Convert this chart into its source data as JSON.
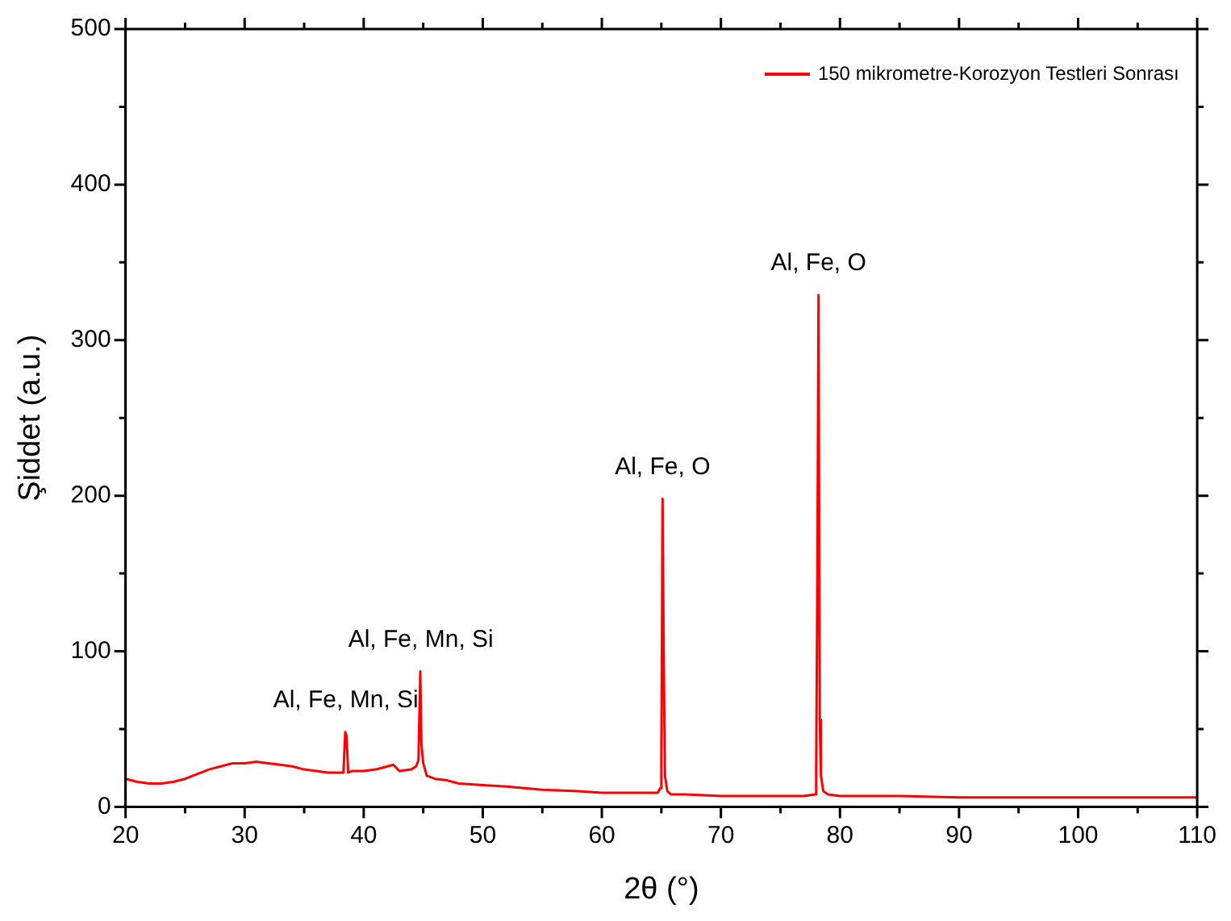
{
  "chart_data": {
    "type": "line",
    "xlabel": "2θ (°)",
    "ylabel": "Şiddet (a.u.)",
    "xlim": [
      20,
      110
    ],
    "ylim": [
      0,
      500
    ],
    "xticks": [
      20,
      {
        "value": 25,
        "label": null
      },
      30,
      {
        "value": 35,
        "label": null
      },
      40,
      {
        "value": 45,
        "label": null
      },
      50,
      {
        "value": 55,
        "label": null
      },
      60,
      {
        "value": 65,
        "label": null
      },
      70,
      {
        "value": 75,
        "label": null
      },
      80,
      {
        "value": 85,
        "label": null
      },
      90,
      {
        "value": 95,
        "label": null
      },
      100,
      {
        "value": 105,
        "label": null
      },
      110
    ],
    "yticks": [
      0,
      {
        "value": 50,
        "label": null
      },
      100,
      {
        "value": 150,
        "label": null
      },
      200,
      {
        "value": 250,
        "label": null
      },
      300,
      {
        "value": 350,
        "label": null
      },
      400,
      {
        "value": 450,
        "label": null
      },
      500
    ],
    "grid": false,
    "legend": "top right",
    "marker": "none",
    "line_style": "solid",
    "series": [
      {
        "name": "150 mikrometre-Korozyon Testleri Sonrası",
        "color": "#ff0000",
        "x": [
          20,
          21,
          22,
          23,
          24,
          25,
          26,
          27,
          28,
          29,
          30,
          31,
          32,
          33,
          34,
          35,
          36,
          37,
          38,
          38.3,
          38.45,
          38.55,
          38.7,
          39,
          40,
          41,
          41.5,
          42,
          42.5,
          43,
          44,
          44.4,
          44.6,
          44.75,
          44.85,
          45,
          45.3,
          46,
          47,
          48,
          50,
          52,
          55,
          58,
          60,
          62,
          64.7,
          64.9,
          65.0,
          65.1,
          65.2,
          65.3,
          65.5,
          65.8,
          67,
          70,
          73,
          75,
          77,
          77.9,
          78.0,
          78.1,
          78.2,
          78.3,
          78.4,
          78.6,
          79,
          80,
          85,
          90,
          95,
          100,
          105,
          110
        ],
        "values": [
          18,
          16,
          15,
          15,
          16,
          18,
          21,
          24,
          26,
          28,
          28,
          29,
          28,
          27,
          26,
          24,
          23,
          22,
          22,
          22,
          48,
          46,
          22,
          23,
          23,
          24,
          25,
          26,
          27,
          23,
          24,
          26,
          30,
          87,
          40,
          28,
          20,
          18,
          17,
          15,
          14,
          13,
          11,
          10,
          9,
          9,
          9,
          12,
          30,
          198,
          95,
          20,
          10,
          8,
          8,
          7,
          7,
          7,
          7,
          8,
          20,
          150,
          329,
          56,
          20,
          10,
          8,
          7,
          7,
          6,
          6,
          6,
          6,
          6
        ]
      }
    ],
    "annotations": [
      {
        "text": "Al, Fe, Mn, Si",
        "x": 38.5,
        "y": 48
      },
      {
        "text": "Al, Fe, Mn, Si",
        "x": 44.8,
        "y": 87
      },
      {
        "text": "Al, Fe, O",
        "x": 65.1,
        "y": 198
      },
      {
        "text": "Al, Fe, O",
        "x": 78.2,
        "y": 329
      }
    ]
  }
}
